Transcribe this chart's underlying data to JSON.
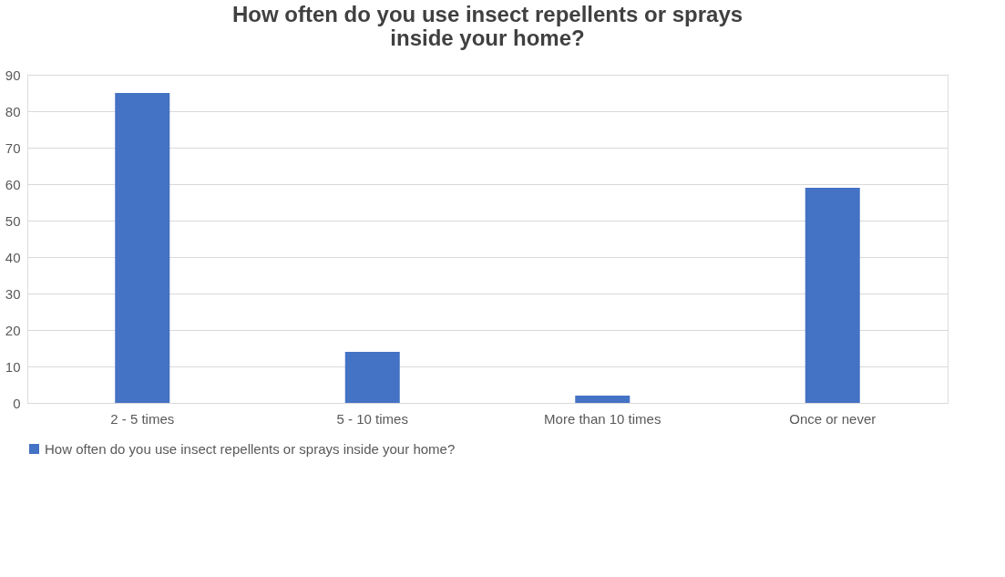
{
  "chart_data": {
    "type": "bar",
    "title": "How often do you use insect repellents or sprays inside your home?",
    "categories": [
      "2 - 5 times",
      "5 - 10 times",
      "More than 10 times",
      "Once or never"
    ],
    "series": [
      {
        "name": "How often do you use insect repellents or sprays inside your home?",
        "color": "#4472c4",
        "values": [
          85,
          14,
          2,
          59
        ]
      }
    ],
    "ylim": [
      0,
      90
    ],
    "yticks": [
      0,
      10,
      20,
      30,
      40,
      50,
      60,
      70,
      80,
      90
    ],
    "grid": "y",
    "legend": "bottom"
  }
}
